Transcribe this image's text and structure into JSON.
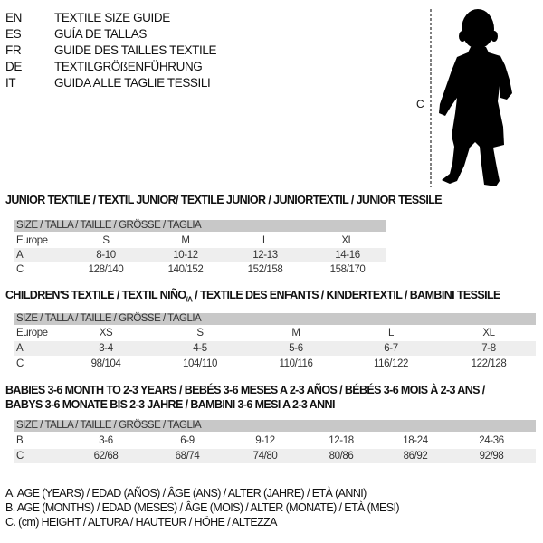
{
  "header": {
    "lines": [
      {
        "code": "EN",
        "text": "TEXTILE SIZE GUIDE"
      },
      {
        "code": "ES",
        "text": "GUÍA DE TALLAS"
      },
      {
        "code": "FR",
        "text": "GUIDE DES TAILLES TEXTILE"
      },
      {
        "code": "DE",
        "text": "TEXTILGRÖßENFÜHRUNG"
      },
      {
        "code": "IT",
        "text": "GUIDA ALLE TAGLIE TESSILI"
      }
    ]
  },
  "figure": {
    "measure_label": "C",
    "icon": "child-silhouette-icon"
  },
  "size_header": "SIZE / TALLA / TAILLE / GRÖSSE / TAGLIA",
  "junior": {
    "title": "JUNIOR TEXTILE / TEXTIL JUNIOR/ TEXTILE JUNIOR / JUNIORTEXTIL / JUNIOR TESSILE",
    "rows": [
      {
        "label": "Europe",
        "values": [
          "S",
          "M",
          "L",
          "XL"
        ]
      },
      {
        "label": "A",
        "values": [
          "8-10",
          "10-12",
          "12-13",
          "14-16"
        ]
      },
      {
        "label": "C",
        "values": [
          "128/140",
          "140/152",
          "152/158",
          "158/170"
        ]
      }
    ]
  },
  "children": {
    "title": "CHILDREN'S TEXTILE / TEXTIL NIÑO",
    "title_sub": "/A",
    "title_rest": " / TEXTILE DES ENFANTS / KINDERTEXTIL / BAMBINI TESSILE",
    "rows": [
      {
        "label": "Europe",
        "values": [
          "XS",
          "S",
          "M",
          "L",
          "XL"
        ]
      },
      {
        "label": "A",
        "values": [
          "3-4",
          "4-5",
          "5-6",
          "6-7",
          "7-8"
        ]
      },
      {
        "label": "C",
        "values": [
          "98/104",
          "104/110",
          "110/116",
          "116/122",
          "122/128"
        ]
      }
    ]
  },
  "babies": {
    "title_line1": "BABIES 3-6 MONTH TO 2-3 YEARS / BEBÉS 3-6 MESES A 2-3 AÑOS / BÉBÉS 3-6 MOIS À 2-3 ANS /",
    "title_line2": "BABYS 3-6 MONATE BIS 2-3 JAHRE / BAMBINI 3-6 MESI A 2-3 ANNI",
    "rows": [
      {
        "label": "B",
        "values": [
          "3-6",
          "6-9",
          "9-12",
          "12-18",
          "18-24",
          "24-36"
        ]
      },
      {
        "label": "C",
        "values": [
          "62/68",
          "68/74",
          "74/80",
          "80/86",
          "86/92",
          "92/98"
        ]
      }
    ]
  },
  "legend": [
    "A. AGE (YEARS) / EDAD (AÑOS) / ÂGE (ANS) / ALTER (JAHRE) / ETÀ (ANNI)",
    "B. AGE (MONTHS) / EDAD (MESES) / ÂGE (MOIS) / ALTER (MONATE) / ETÀ (MESI)",
    "C. (cm) HEIGHT / ALTURA / HAUTEUR / HÖHE / ALTEZZA"
  ]
}
